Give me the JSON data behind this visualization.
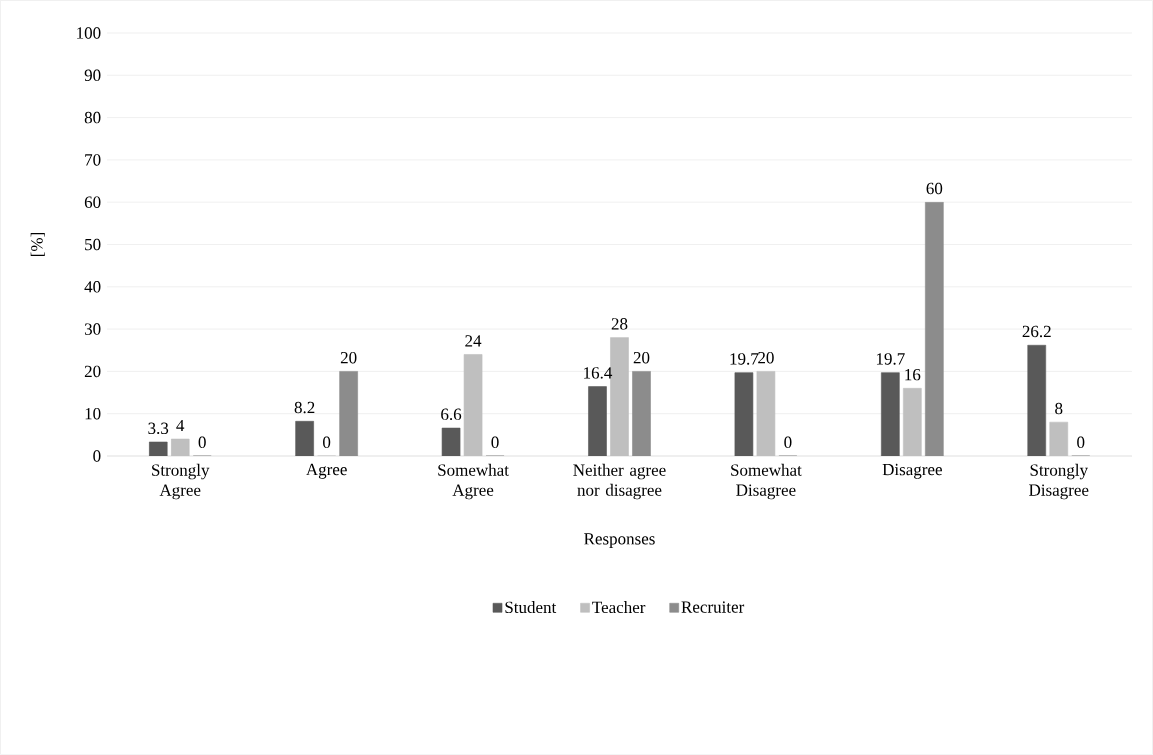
{
  "chart_data": {
    "type": "bar",
    "xlabel": "Responses",
    "ylabel": "[%]",
    "categories": [
      "Strongly Agree",
      "Agree",
      "Somewhat Agree",
      "Neither agree nor disagree",
      "Somewhat Disagree",
      "Disagree",
      "Strongly Disagree"
    ],
    "series": [
      {
        "name": "Student",
        "color": "#595959",
        "values": [
          3.3,
          8.2,
          6.6,
          16.4,
          19.7,
          19.7,
          26.2
        ]
      },
      {
        "name": "Teacher",
        "color": "#bfbfbf",
        "values": [
          4,
          0,
          24,
          28,
          20,
          16,
          8
        ]
      },
      {
        "name": "Recruiter",
        "color": "#8c8c8c",
        "values": [
          0,
          20,
          0,
          20,
          0,
          60,
          0
        ]
      }
    ],
    "ylim": [
      0,
      100
    ],
    "yticks": [
      0,
      10,
      20,
      30,
      40,
      50,
      60,
      70,
      80,
      90,
      100
    ],
    "grid": "y",
    "legend": "bottom",
    "data_labels": true
  }
}
